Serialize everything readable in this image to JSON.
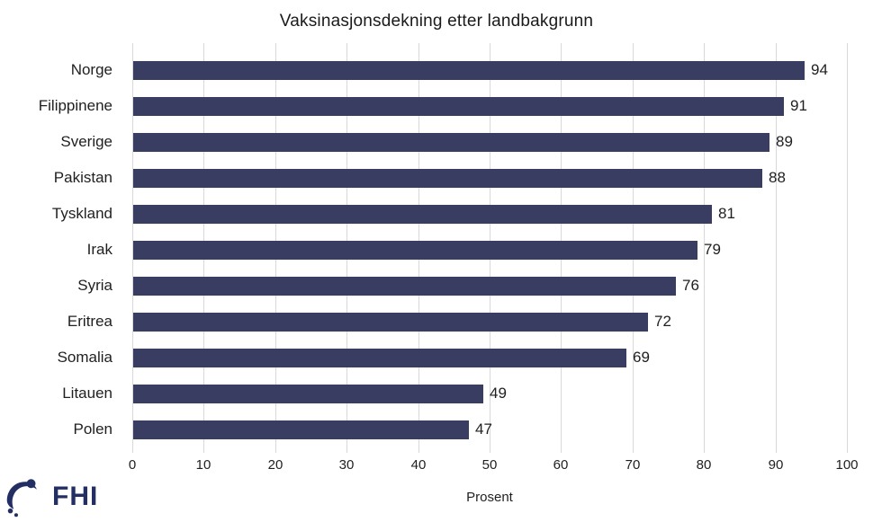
{
  "title": "Vaksinasjonsdekning etter landbakgrunn",
  "chart_data": {
    "type": "bar",
    "orientation": "horizontal",
    "title": "Vaksinasjonsdekning etter landbakgrunn",
    "categories": [
      "Norge",
      "Filippinene",
      "Sverige",
      "Pakistan",
      "Tyskland",
      "Irak",
      "Syria",
      "Eritrea",
      "Somalia",
      "Litauen",
      "Polen"
    ],
    "values": [
      94,
      91,
      89,
      88,
      81,
      79,
      76,
      72,
      69,
      49,
      47
    ],
    "xlabel": "Prosent",
    "ylabel": "",
    "xlim": [
      0,
      100
    ],
    "xticks": [
      0,
      10,
      20,
      30,
      40,
      50,
      60,
      70,
      80,
      90,
      100
    ],
    "grid": "vertical",
    "legend": "none",
    "data_labels": true
  },
  "colors": {
    "bar": "#3a3d62",
    "grid": "#d9d9d9",
    "text": "#1f1f1f",
    "logo": "#232f63"
  },
  "footer": {
    "logo_text": "FHI"
  }
}
